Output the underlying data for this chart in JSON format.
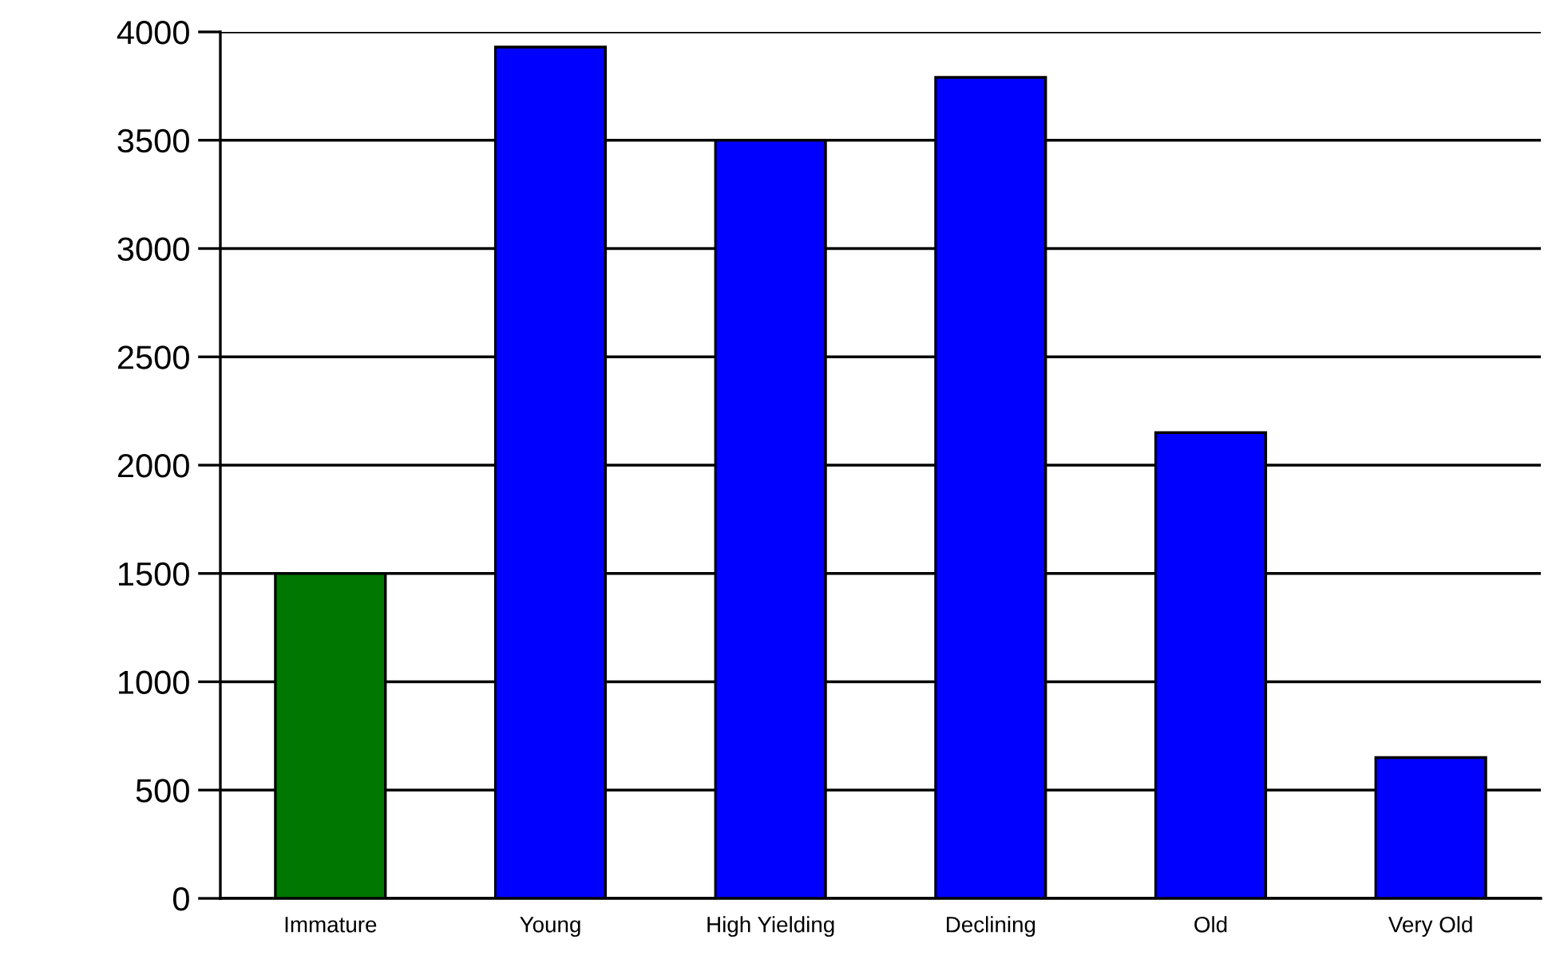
{
  "chart_data": {
    "type": "bar",
    "categories": [
      "Immature",
      "Young",
      "High Yielding",
      "Declining",
      "Old",
      "Very Old"
    ],
    "values": [
      1500,
      3930,
      3500,
      3790,
      2150,
      650
    ],
    "colors": [
      "#007700",
      "#0000ff",
      "#0000ff",
      "#0000ff",
      "#0000ff",
      "#0000ff"
    ],
    "ylim": [
      0,
      4000
    ],
    "yticks": [
      0,
      500,
      1000,
      1500,
      2000,
      2500,
      3000,
      3500,
      4000
    ],
    "grid": "y",
    "legend": false
  }
}
